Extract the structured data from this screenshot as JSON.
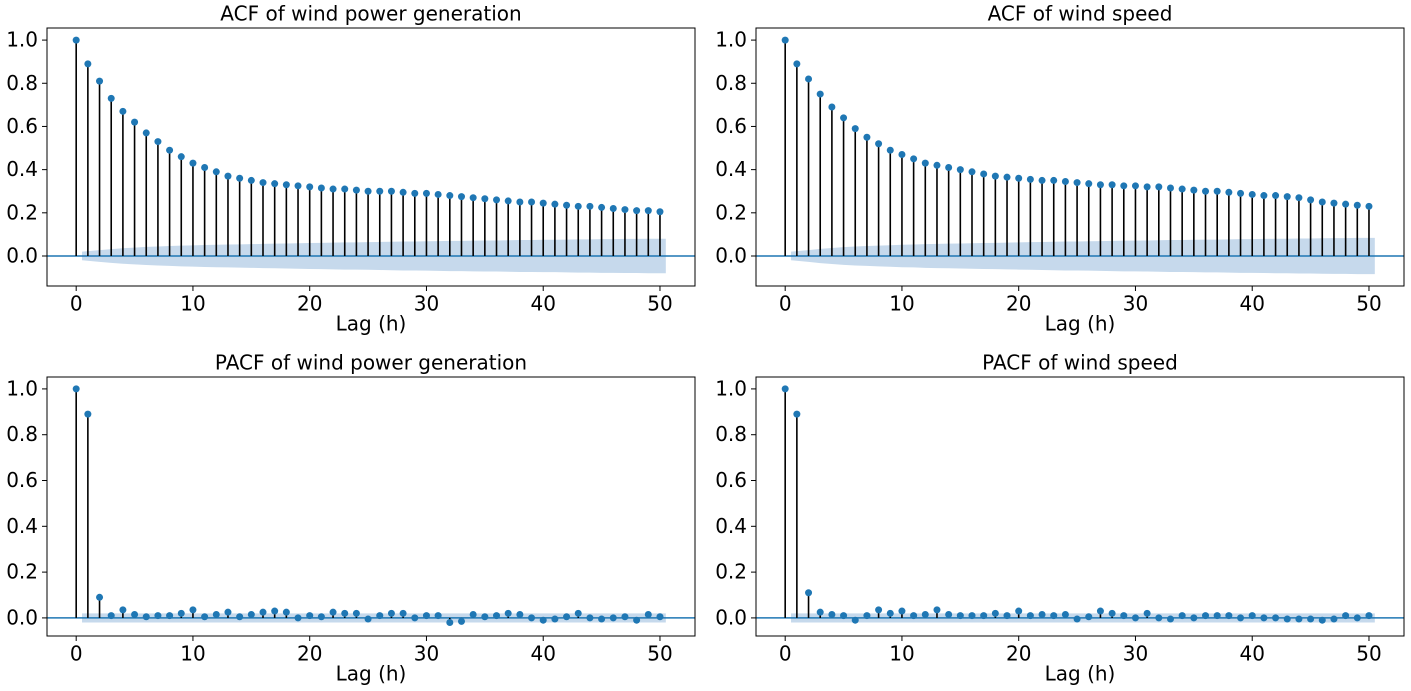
{
  "chart_data": [
    {
      "type": "stem",
      "title": "ACF of wind power generation",
      "x_label": "Lag (h)",
      "x": [
        0,
        1,
        2,
        3,
        4,
        5,
        6,
        7,
        8,
        9,
        10,
        11,
        12,
        13,
        14,
        15,
        16,
        17,
        18,
        19,
        20,
        21,
        22,
        23,
        24,
        25,
        26,
        27,
        28,
        29,
        30,
        31,
        32,
        33,
        34,
        35,
        36,
        37,
        38,
        39,
        40,
        41,
        42,
        43,
        44,
        45,
        46,
        47,
        48,
        49,
        50
      ],
      "values": [
        1.0,
        0.89,
        0.81,
        0.73,
        0.67,
        0.62,
        0.57,
        0.53,
        0.49,
        0.46,
        0.43,
        0.41,
        0.39,
        0.37,
        0.36,
        0.35,
        0.34,
        0.335,
        0.33,
        0.325,
        0.32,
        0.315,
        0.31,
        0.31,
        0.305,
        0.3,
        0.3,
        0.3,
        0.295,
        0.29,
        0.29,
        0.285,
        0.28,
        0.275,
        0.27,
        0.265,
        0.26,
        0.255,
        0.25,
        0.25,
        0.245,
        0.24,
        0.235,
        0.23,
        0.23,
        0.225,
        0.22,
        0.215,
        0.21,
        0.21,
        0.205
      ],
      "ci": [
        null,
        0.02,
        0.027,
        0.032,
        0.036,
        0.039,
        0.042,
        0.044,
        0.046,
        0.048,
        0.049,
        0.051,
        0.052,
        0.053,
        0.054,
        0.055,
        0.056,
        0.057,
        0.058,
        0.059,
        0.06,
        0.061,
        0.062,
        0.063,
        0.063,
        0.064,
        0.065,
        0.066,
        0.067,
        0.067,
        0.068,
        0.069,
        0.07,
        0.07,
        0.071,
        0.072,
        0.072,
        0.073,
        0.074,
        0.074,
        0.075,
        0.075,
        0.076,
        0.077,
        0.077,
        0.078,
        0.078,
        0.079,
        0.079,
        0.08,
        0.08
      ],
      "color": "#1f77b4",
      "stem_color": "#000000",
      "band_color": "#c6d9ec",
      "xlim": [
        -2.5,
        53
      ],
      "xticks": [
        0,
        10,
        20,
        30,
        40,
        50
      ],
      "ylim": [
        -0.139,
        1.056
      ],
      "yticks": [
        {
          "value": 0,
          "label": "0.0"
        },
        0.2,
        0.4,
        0.6,
        0.8,
        {
          "value": 1,
          "label": "1.0"
        }
      ]
    },
    {
      "type": "stem",
      "title": "ACF of wind speed",
      "x_label": "Lag (h)",
      "x": [
        0,
        1,
        2,
        3,
        4,
        5,
        6,
        7,
        8,
        9,
        10,
        11,
        12,
        13,
        14,
        15,
        16,
        17,
        18,
        19,
        20,
        21,
        22,
        23,
        24,
        25,
        26,
        27,
        28,
        29,
        30,
        31,
        32,
        33,
        34,
        35,
        36,
        37,
        38,
        39,
        40,
        41,
        42,
        43,
        44,
        45,
        46,
        47,
        48,
        49,
        50
      ],
      "values": [
        1.0,
        0.89,
        0.82,
        0.75,
        0.69,
        0.64,
        0.59,
        0.55,
        0.52,
        0.49,
        0.47,
        0.45,
        0.43,
        0.42,
        0.41,
        0.4,
        0.39,
        0.38,
        0.37,
        0.365,
        0.36,
        0.355,
        0.35,
        0.35,
        0.345,
        0.34,
        0.335,
        0.33,
        0.33,
        0.325,
        0.325,
        0.32,
        0.32,
        0.315,
        0.31,
        0.305,
        0.3,
        0.3,
        0.295,
        0.29,
        0.285,
        0.28,
        0.28,
        0.275,
        0.27,
        0.26,
        0.25,
        0.245,
        0.24,
        0.235,
        0.23
      ],
      "ci": [
        null,
        0.02,
        0.027,
        0.033,
        0.037,
        0.041,
        0.044,
        0.046,
        0.048,
        0.05,
        0.052,
        0.053,
        0.055,
        0.056,
        0.057,
        0.058,
        0.059,
        0.06,
        0.061,
        0.062,
        0.063,
        0.064,
        0.065,
        0.066,
        0.067,
        0.067,
        0.068,
        0.069,
        0.07,
        0.071,
        0.071,
        0.072,
        0.073,
        0.074,
        0.074,
        0.075,
        0.076,
        0.076,
        0.077,
        0.078,
        0.078,
        0.079,
        0.08,
        0.08,
        0.081,
        0.081,
        0.082,
        0.083,
        0.083,
        0.084,
        0.084
      ],
      "color": "#1f77b4",
      "stem_color": "#000000",
      "band_color": "#c6d9ec",
      "xlim": [
        -2.5,
        53
      ],
      "xticks": [
        0,
        10,
        20,
        30,
        40,
        50
      ],
      "ylim": [
        -0.139,
        1.056
      ],
      "yticks": [
        {
          "value": 0,
          "label": "0.0"
        },
        0.2,
        0.4,
        0.6,
        0.8,
        {
          "value": 1,
          "label": "1.0"
        }
      ]
    },
    {
      "type": "stem",
      "title": "PACF of wind power generation",
      "x_label": "Lag (h)",
      "x": [
        0,
        1,
        2,
        3,
        4,
        5,
        6,
        7,
        8,
        9,
        10,
        11,
        12,
        13,
        14,
        15,
        16,
        17,
        18,
        19,
        20,
        21,
        22,
        23,
        24,
        25,
        26,
        27,
        28,
        29,
        30,
        31,
        32,
        33,
        34,
        35,
        36,
        37,
        38,
        39,
        40,
        41,
        42,
        43,
        44,
        45,
        46,
        47,
        48,
        49,
        50
      ],
      "values": [
        1.0,
        0.89,
        0.09,
        0.01,
        0.035,
        0.015,
        0.005,
        0.01,
        0.01,
        0.02,
        0.035,
        0.005,
        0.015,
        0.025,
        0.005,
        0.015,
        0.025,
        0.03,
        0.025,
        0.0,
        0.01,
        0.005,
        0.025,
        0.02,
        0.02,
        -0.005,
        0.01,
        0.02,
        0.02,
        0.0,
        0.01,
        0.01,
        -0.02,
        -0.015,
        0.015,
        0.005,
        0.01,
        0.02,
        0.015,
        0.0,
        -0.01,
        -0.005,
        0.005,
        0.02,
        0.0,
        -0.005,
        0.0,
        0.005,
        -0.01,
        0.015,
        0.005
      ],
      "ci": [
        null,
        0.02,
        0.02,
        0.02,
        0.02,
        0.02,
        0.02,
        0.02,
        0.02,
        0.02,
        0.02,
        0.02,
        0.02,
        0.02,
        0.02,
        0.02,
        0.02,
        0.02,
        0.02,
        0.02,
        0.02,
        0.02,
        0.02,
        0.02,
        0.02,
        0.02,
        0.02,
        0.02,
        0.02,
        0.02,
        0.02,
        0.02,
        0.02,
        0.02,
        0.02,
        0.02,
        0.02,
        0.02,
        0.02,
        0.02,
        0.02,
        0.02,
        0.02,
        0.02,
        0.02,
        0.02,
        0.02,
        0.02,
        0.02,
        0.02,
        0.02
      ],
      "color": "#1f77b4",
      "stem_color": "#000000",
      "band_color": "#c6d9ec",
      "xlim": [
        -2.5,
        53
      ],
      "xticks": [
        0,
        10,
        20,
        30,
        40,
        50
      ],
      "ylim": [
        -0.079,
        1.052
      ],
      "yticks": [
        {
          "value": 0,
          "label": "0.0"
        },
        0.2,
        0.4,
        0.6,
        0.8,
        {
          "value": 1,
          "label": "1.0"
        }
      ]
    },
    {
      "type": "stem",
      "title": "PACF of wind speed",
      "x_label": "Lag (h)",
      "x": [
        0,
        1,
        2,
        3,
        4,
        5,
        6,
        7,
        8,
        9,
        10,
        11,
        12,
        13,
        14,
        15,
        16,
        17,
        18,
        19,
        20,
        21,
        22,
        23,
        24,
        25,
        26,
        27,
        28,
        29,
        30,
        31,
        32,
        33,
        34,
        35,
        36,
        37,
        38,
        39,
        40,
        41,
        42,
        43,
        44,
        45,
        46,
        47,
        48,
        49,
        50
      ],
      "values": [
        1.0,
        0.89,
        0.11,
        0.025,
        0.015,
        0.01,
        -0.01,
        0.01,
        0.035,
        0.02,
        0.03,
        0.01,
        0.015,
        0.035,
        0.015,
        0.01,
        0.01,
        0.01,
        0.02,
        0.01,
        0.03,
        0.01,
        0.015,
        0.01,
        0.015,
        -0.005,
        0.005,
        0.03,
        0.02,
        0.01,
        0.0,
        0.02,
        0.0,
        -0.005,
        0.01,
        0.0,
        0.01,
        0.01,
        0.01,
        0.0,
        0.01,
        0.0,
        0.0,
        -0.005,
        -0.005,
        -0.005,
        -0.01,
        -0.005,
        0.01,
        0.0,
        0.01
      ],
      "ci": [
        null,
        0.02,
        0.02,
        0.02,
        0.02,
        0.02,
        0.02,
        0.02,
        0.02,
        0.02,
        0.02,
        0.02,
        0.02,
        0.02,
        0.02,
        0.02,
        0.02,
        0.02,
        0.02,
        0.02,
        0.02,
        0.02,
        0.02,
        0.02,
        0.02,
        0.02,
        0.02,
        0.02,
        0.02,
        0.02,
        0.02,
        0.02,
        0.02,
        0.02,
        0.02,
        0.02,
        0.02,
        0.02,
        0.02,
        0.02,
        0.02,
        0.02,
        0.02,
        0.02,
        0.02,
        0.02,
        0.02,
        0.02,
        0.02,
        0.02,
        0.02
      ],
      "color": "#1f77b4",
      "stem_color": "#000000",
      "band_color": "#c6d9ec",
      "xlim": [
        -2.5,
        53
      ],
      "xticks": [
        0,
        10,
        20,
        30,
        40,
        50
      ],
      "ylim": [
        -0.079,
        1.052
      ],
      "yticks": [
        {
          "value": 0,
          "label": "0.0"
        },
        0.2,
        0.4,
        0.6,
        0.8,
        {
          "value": 1,
          "label": "1.0"
        }
      ]
    }
  ]
}
